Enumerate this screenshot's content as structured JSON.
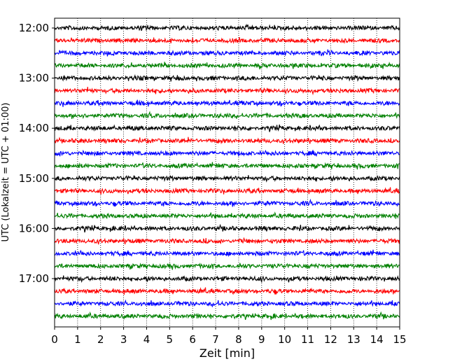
{
  "chart_data": {
    "type": "line",
    "title": "",
    "xlabel": "Zeit  [min]",
    "ylabel": "UTC (Lokalzeit = UTC + 01:00)",
    "xlim": [
      0,
      15
    ],
    "x_ticks": [
      "0",
      "1",
      "2",
      "3",
      "4",
      "5",
      "6",
      "7",
      "8",
      "9",
      "10",
      "11",
      "12",
      "13",
      "14",
      "15"
    ],
    "y_tick_labels": [
      "12:00",
      "13:00",
      "14:00",
      "15:00",
      "16:00",
      "17:00"
    ],
    "grid": "vertical dotted lines at each minute",
    "trace_colors": [
      "#000000",
      "#ff0000",
      "#0000ff",
      "#008000"
    ],
    "traces": [
      {
        "start": "12:00",
        "color": "#000000",
        "amplitude": 0.45
      },
      {
        "start": "12:15",
        "color": "#ff0000",
        "amplitude": 0.45
      },
      {
        "start": "12:30",
        "color": "#0000ff",
        "amplitude": 0.45
      },
      {
        "start": "12:45",
        "color": "#008000",
        "amplitude": 0.45
      },
      {
        "start": "13:00",
        "color": "#000000",
        "amplitude": 0.45
      },
      {
        "start": "13:15",
        "color": "#ff0000",
        "amplitude": 0.45
      },
      {
        "start": "13:30",
        "color": "#0000ff",
        "amplitude": 0.45
      },
      {
        "start": "13:45",
        "color": "#008000",
        "amplitude": 0.45
      },
      {
        "start": "14:00",
        "color": "#000000",
        "amplitude": 0.45
      },
      {
        "start": "14:15",
        "color": "#ff0000",
        "amplitude": 0.45
      },
      {
        "start": "14:30",
        "color": "#0000ff",
        "amplitude": 0.45
      },
      {
        "start": "14:45",
        "color": "#008000",
        "amplitude": 0.45
      },
      {
        "start": "15:00",
        "color": "#000000",
        "amplitude": 0.45
      },
      {
        "start": "15:15",
        "color": "#ff0000",
        "amplitude": 0.45
      },
      {
        "start": "15:30",
        "color": "#0000ff",
        "amplitude": 0.45
      },
      {
        "start": "15:45",
        "color": "#008000",
        "amplitude": 0.45
      },
      {
        "start": "16:00",
        "color": "#000000",
        "amplitude": 0.45
      },
      {
        "start": "16:15",
        "color": "#ff0000",
        "amplitude": 0.45
      },
      {
        "start": "16:30",
        "color": "#0000ff",
        "amplitude": 0.45
      },
      {
        "start": "16:45",
        "color": "#008000",
        "amplitude": 0.45
      },
      {
        "start": "17:00",
        "color": "#000000",
        "amplitude": 0.45
      },
      {
        "start": "17:15",
        "color": "#ff0000",
        "amplitude": 0.45
      },
      {
        "start": "17:30",
        "color": "#0000ff",
        "amplitude": 0.45
      },
      {
        "start": "17:45",
        "color": "#008000",
        "amplitude": 0.45
      }
    ]
  }
}
